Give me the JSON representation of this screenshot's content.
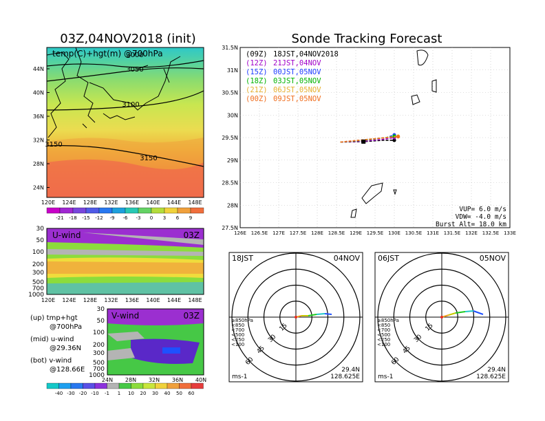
{
  "left": {
    "title": "03Z,04NOV2018 (init)",
    "map": {
      "label": "temp(C)+hgt(m) @700hPa",
      "contours": [
        "3000",
        "3050",
        "3100",
        "3150",
        "3150"
      ],
      "lat_ticks": [
        "44N",
        "40N",
        "36N",
        "32N",
        "28N",
        "24N"
      ],
      "lon_ticks": [
        "120E",
        "124E",
        "128E",
        "132E",
        "136E",
        "140E",
        "144E",
        "148E"
      ]
    },
    "temp_colorbar": [
      "-21",
      "-18",
      "-15",
      "-12",
      "-9",
      "-6",
      "-3",
      "0",
      "3",
      "6",
      "9"
    ],
    "uwind": {
      "label": "U-wind",
      "time": "03Z",
      "p_ticks": [
        "30",
        "50",
        "100",
        "200",
        "300",
        "500",
        "700",
        "1000"
      ],
      "lon_ticks": [
        "120E",
        "124E",
        "128E",
        "132E",
        "136E",
        "140E",
        "144E",
        "148E"
      ]
    },
    "vwind": {
      "label": "V-wind",
      "time": "03Z",
      "p_ticks": [
        "30",
        "50",
        "100",
        "200",
        "300",
        "500",
        "700",
        "1000"
      ],
      "lat_ticks": [
        "24N",
        "28N",
        "32N",
        "36N",
        "40N"
      ]
    },
    "notes": [
      {
        "line1": "(up) tmp+hgt",
        "line2": "@700hPa"
      },
      {
        "line1": "(mid) u-wind",
        "line2": "@29.36N"
      },
      {
        "line1": "(bot) v-wind",
        "line2": "@128.66E"
      }
    ],
    "wind_colorbar": [
      "-40",
      "-30",
      "-20",
      "-10",
      "-1",
      "1",
      "10",
      "20",
      "30",
      "40",
      "50",
      "60"
    ]
  },
  "right": {
    "title": "Sonde Tracking Forecast",
    "legend": [
      {
        "code": "(09Z)",
        "text": "18JST,04NOV2018",
        "color": "#000000"
      },
      {
        "code": "(12Z)",
        "text": "21JST,04NOV",
        "color": "#a000c8"
      },
      {
        "code": "(15Z)",
        "text": "00JST,05NOV",
        "color": "#1e3cff"
      },
      {
        "code": "(18Z)",
        "text": "03JST,05NOV",
        "color": "#00b400"
      },
      {
        "code": "(21Z)",
        "text": "06JST,05NOV",
        "color": "#e6af2d"
      },
      {
        "code": "(00Z)",
        "text": "09JST,05NOV",
        "color": "#f06e1e"
      }
    ],
    "lat_ticks": [
      "31.5N",
      "31N",
      "30.5N",
      "30N",
      "29.5N",
      "29N",
      "28.5N",
      "28N",
      "27.5N"
    ],
    "lon_ticks": [
      "126E",
      "126.5E",
      "127E",
      "127.5E",
      "128E",
      "128.5E",
      "129E",
      "129.5E",
      "130E",
      "130.5E",
      "131E",
      "131.5E",
      "132E",
      "132.5E",
      "133E"
    ],
    "params": [
      "VUP= 6.0 m/s",
      "VDW= -4.0 m/s",
      "Burst Alt= 18.0 km"
    ]
  },
  "polar": [
    {
      "time": "18JST",
      "date": "04NOV",
      "lat": "29.4N",
      "lon": "128.625E"
    },
    {
      "time": "06JST",
      "date": "05NOV",
      "lat": "29.4N",
      "lon": "128.625E"
    }
  ],
  "polar_common": {
    "rings": [
      "15",
      "30",
      "45",
      "60"
    ],
    "unit": "ms-1",
    "levels": [
      {
        "label": "≥850hPa",
        "color": "#e6281e"
      },
      {
        "label": "<850",
        "color": "#f0a01e"
      },
      {
        "label": "<700",
        "color": "#c8c800"
      },
      {
        "label": "<500",
        "color": "#1ec81e"
      },
      {
        "label": "<250",
        "color": "#1ec8c8"
      },
      {
        "label": "<100",
        "color": "#1e50ff"
      }
    ]
  },
  "chart_data": [
    {
      "type": "heatmap",
      "title": "03Z,04NOV2018 (init)",
      "annotation": "temp(C)+hgt(m) @700hPa",
      "xlim": [
        120,
        150
      ],
      "ylim": [
        22,
        48
      ],
      "contour_levels": [
        3000,
        3050,
        3100,
        3150
      ],
      "colorbar": [
        -21,
        -18,
        -15,
        -12,
        -9,
        -6,
        -3,
        0,
        3,
        6,
        9
      ]
    },
    {
      "type": "heatmap",
      "annotation": "U-wind",
      "xlim": [
        120,
        150
      ],
      "y_levels_hPa": [
        30,
        50,
        100,
        200,
        300,
        500,
        700,
        1000
      ]
    },
    {
      "type": "heatmap",
      "annotation": "V-wind",
      "xlim": [
        24,
        40
      ],
      "y_levels_hPa": [
        30,
        50,
        100,
        200,
        300,
        500,
        700,
        1000
      ],
      "colorbar": [
        -40,
        -30,
        -20,
        -10,
        -1,
        1,
        10,
        20,
        30,
        40,
        50,
        60
      ]
    },
    {
      "type": "line",
      "title": "Sonde Tracking Forecast",
      "xlim": [
        126,
        133
      ],
      "ylim": [
        27.5,
        31.5
      ],
      "series": [
        {
          "name": "(09Z) 18JST,04NOV2018",
          "color": "#000000",
          "x": [
            128.6,
            129.2,
            129.7,
            130.0
          ],
          "y": [
            29.4,
            29.41,
            29.44,
            29.44
          ]
        },
        {
          "name": "(12Z) 21JST,04NOV",
          "color": "#a000c8",
          "x": [
            128.6,
            129.2,
            129.7,
            130.0
          ],
          "y": [
            29.4,
            29.42,
            29.46,
            29.5
          ]
        },
        {
          "name": "(15Z) 00JST,05NOV",
          "color": "#1e3cff",
          "x": [
            128.6,
            129.2,
            129.8,
            130.0
          ],
          "y": [
            29.4,
            29.45,
            29.5,
            29.56
          ]
        },
        {
          "name": "(18Z) 03JST,05NOV",
          "color": "#00b400",
          "x": [
            128.6,
            129.2,
            129.7,
            130.0
          ],
          "y": [
            29.4,
            29.44,
            29.49,
            29.53
          ]
        },
        {
          "name": "(21Z) 06JST,05NOV",
          "color": "#e6af2d",
          "x": [
            128.6,
            129.2,
            129.8,
            130.1
          ],
          "y": [
            29.4,
            29.45,
            29.5,
            29.53
          ]
        },
        {
          "name": "(00Z) 09JST,05NOV",
          "color": "#f06e1e",
          "x": [
            128.6,
            129.3,
            129.8,
            130.1
          ],
          "y": [
            29.4,
            29.46,
            29.5,
            29.52
          ]
        }
      ]
    }
  ]
}
